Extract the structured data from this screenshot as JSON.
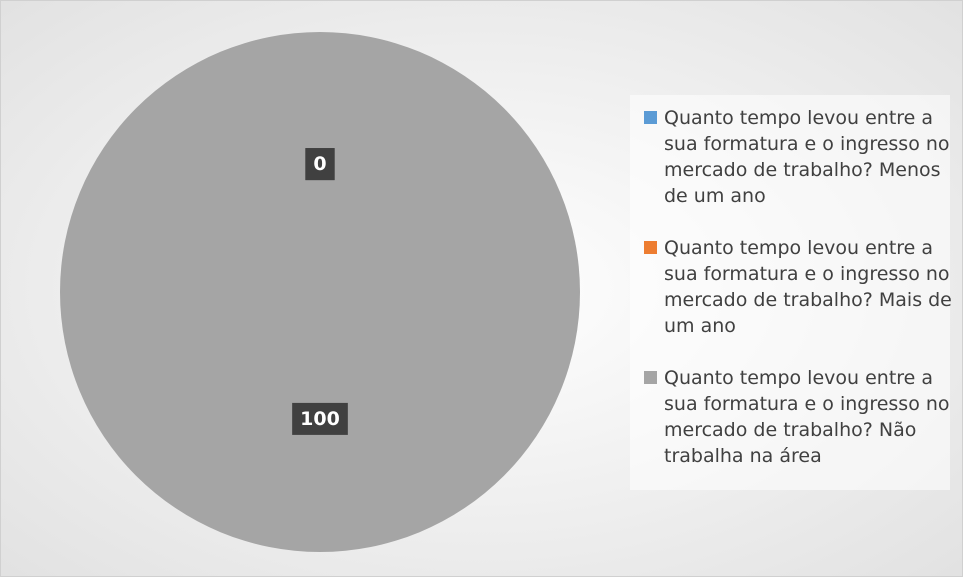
{
  "chart_data": {
    "type": "pie",
    "categories": [
      "Quanto tempo levou entre a sua formatura e o ingresso no mercado de trabalho? Menos de um ano",
      "Quanto tempo levou entre a sua formatura e o ingresso no mercado de trabalho? Mais de um ano",
      "Quanto tempo levou entre a sua formatura e o ingresso no mercado de trabalho? Não trabalha na área"
    ],
    "values": [
      0,
      0,
      100
    ],
    "colors": [
      "#5b9bd5",
      "#ed7d31",
      "#a5a5a5"
    ],
    "legend": "right"
  }
}
